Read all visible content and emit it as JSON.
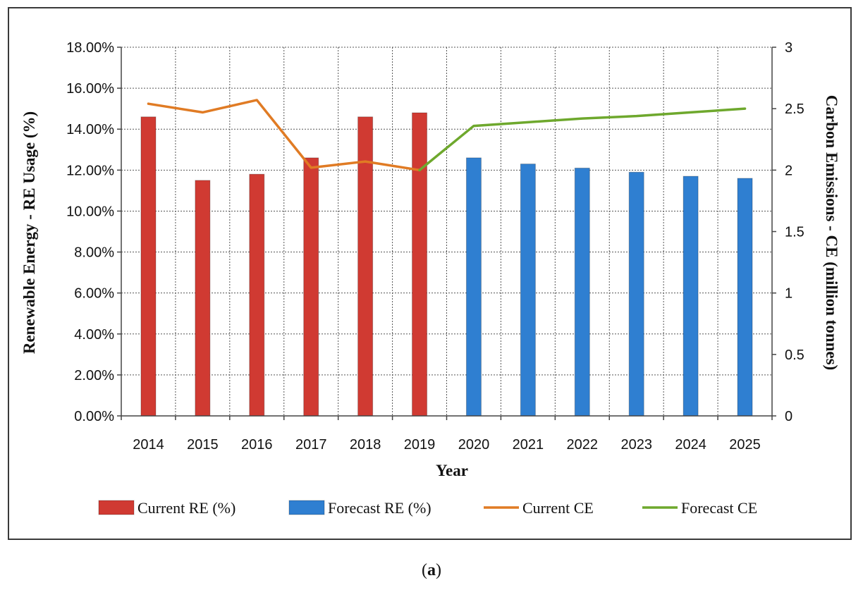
{
  "chart_data": {
    "type": "bar",
    "categories": [
      "2014",
      "2015",
      "2016",
      "2017",
      "2018",
      "2019",
      "2020",
      "2021",
      "2022",
      "2023",
      "2024",
      "2025"
    ],
    "xlabel": "Year",
    "ylabel_left": "Renewable Energy - RE Usage (%)",
    "ylabel_right": "Carbon Emissions - CE (million tonnes)",
    "left_axis": {
      "min": 0,
      "max": 18,
      "step": 2,
      "tick_labels": [
        "0.00%",
        "2.00%",
        "4.00%",
        "6.00%",
        "8.00%",
        "10.00%",
        "12.00%",
        "14.00%",
        "16.00%",
        "18.00%"
      ]
    },
    "right_axis": {
      "min": 0,
      "max": 3,
      "step": 0.5,
      "tick_labels": [
        "0",
        "0.5",
        "1",
        "1.5",
        "2",
        "2.5",
        "3"
      ]
    },
    "grid": true,
    "legend_position": "bottom",
    "series": [
      {
        "name": "Current RE (%)",
        "kind": "bar",
        "axis": "left",
        "color": "#d03a32",
        "values": [
          14.6,
          11.5,
          11.8,
          12.6,
          14.6,
          14.8,
          null,
          null,
          null,
          null,
          null,
          null
        ]
      },
      {
        "name": "Forecast RE (%)",
        "kind": "bar",
        "axis": "left",
        "color": "#2f7fd1",
        "values": [
          null,
          null,
          null,
          null,
          null,
          null,
          12.6,
          12.3,
          12.1,
          11.9,
          11.7,
          11.6
        ]
      },
      {
        "name": "Current CE",
        "kind": "line",
        "axis": "right",
        "color": "#e07b24",
        "values": [
          2.54,
          2.47,
          2.57,
          2.02,
          2.07,
          2.0,
          null,
          null,
          null,
          null,
          null,
          null
        ]
      },
      {
        "name": "Forecast CE",
        "kind": "line",
        "axis": "right",
        "color": "#6ea82d",
        "values": [
          null,
          null,
          null,
          null,
          null,
          2.0,
          2.36,
          2.39,
          2.42,
          2.44,
          2.47,
          2.5
        ]
      }
    ]
  },
  "caption": {
    "letter": "a",
    "open": "(",
    "close": ")"
  }
}
